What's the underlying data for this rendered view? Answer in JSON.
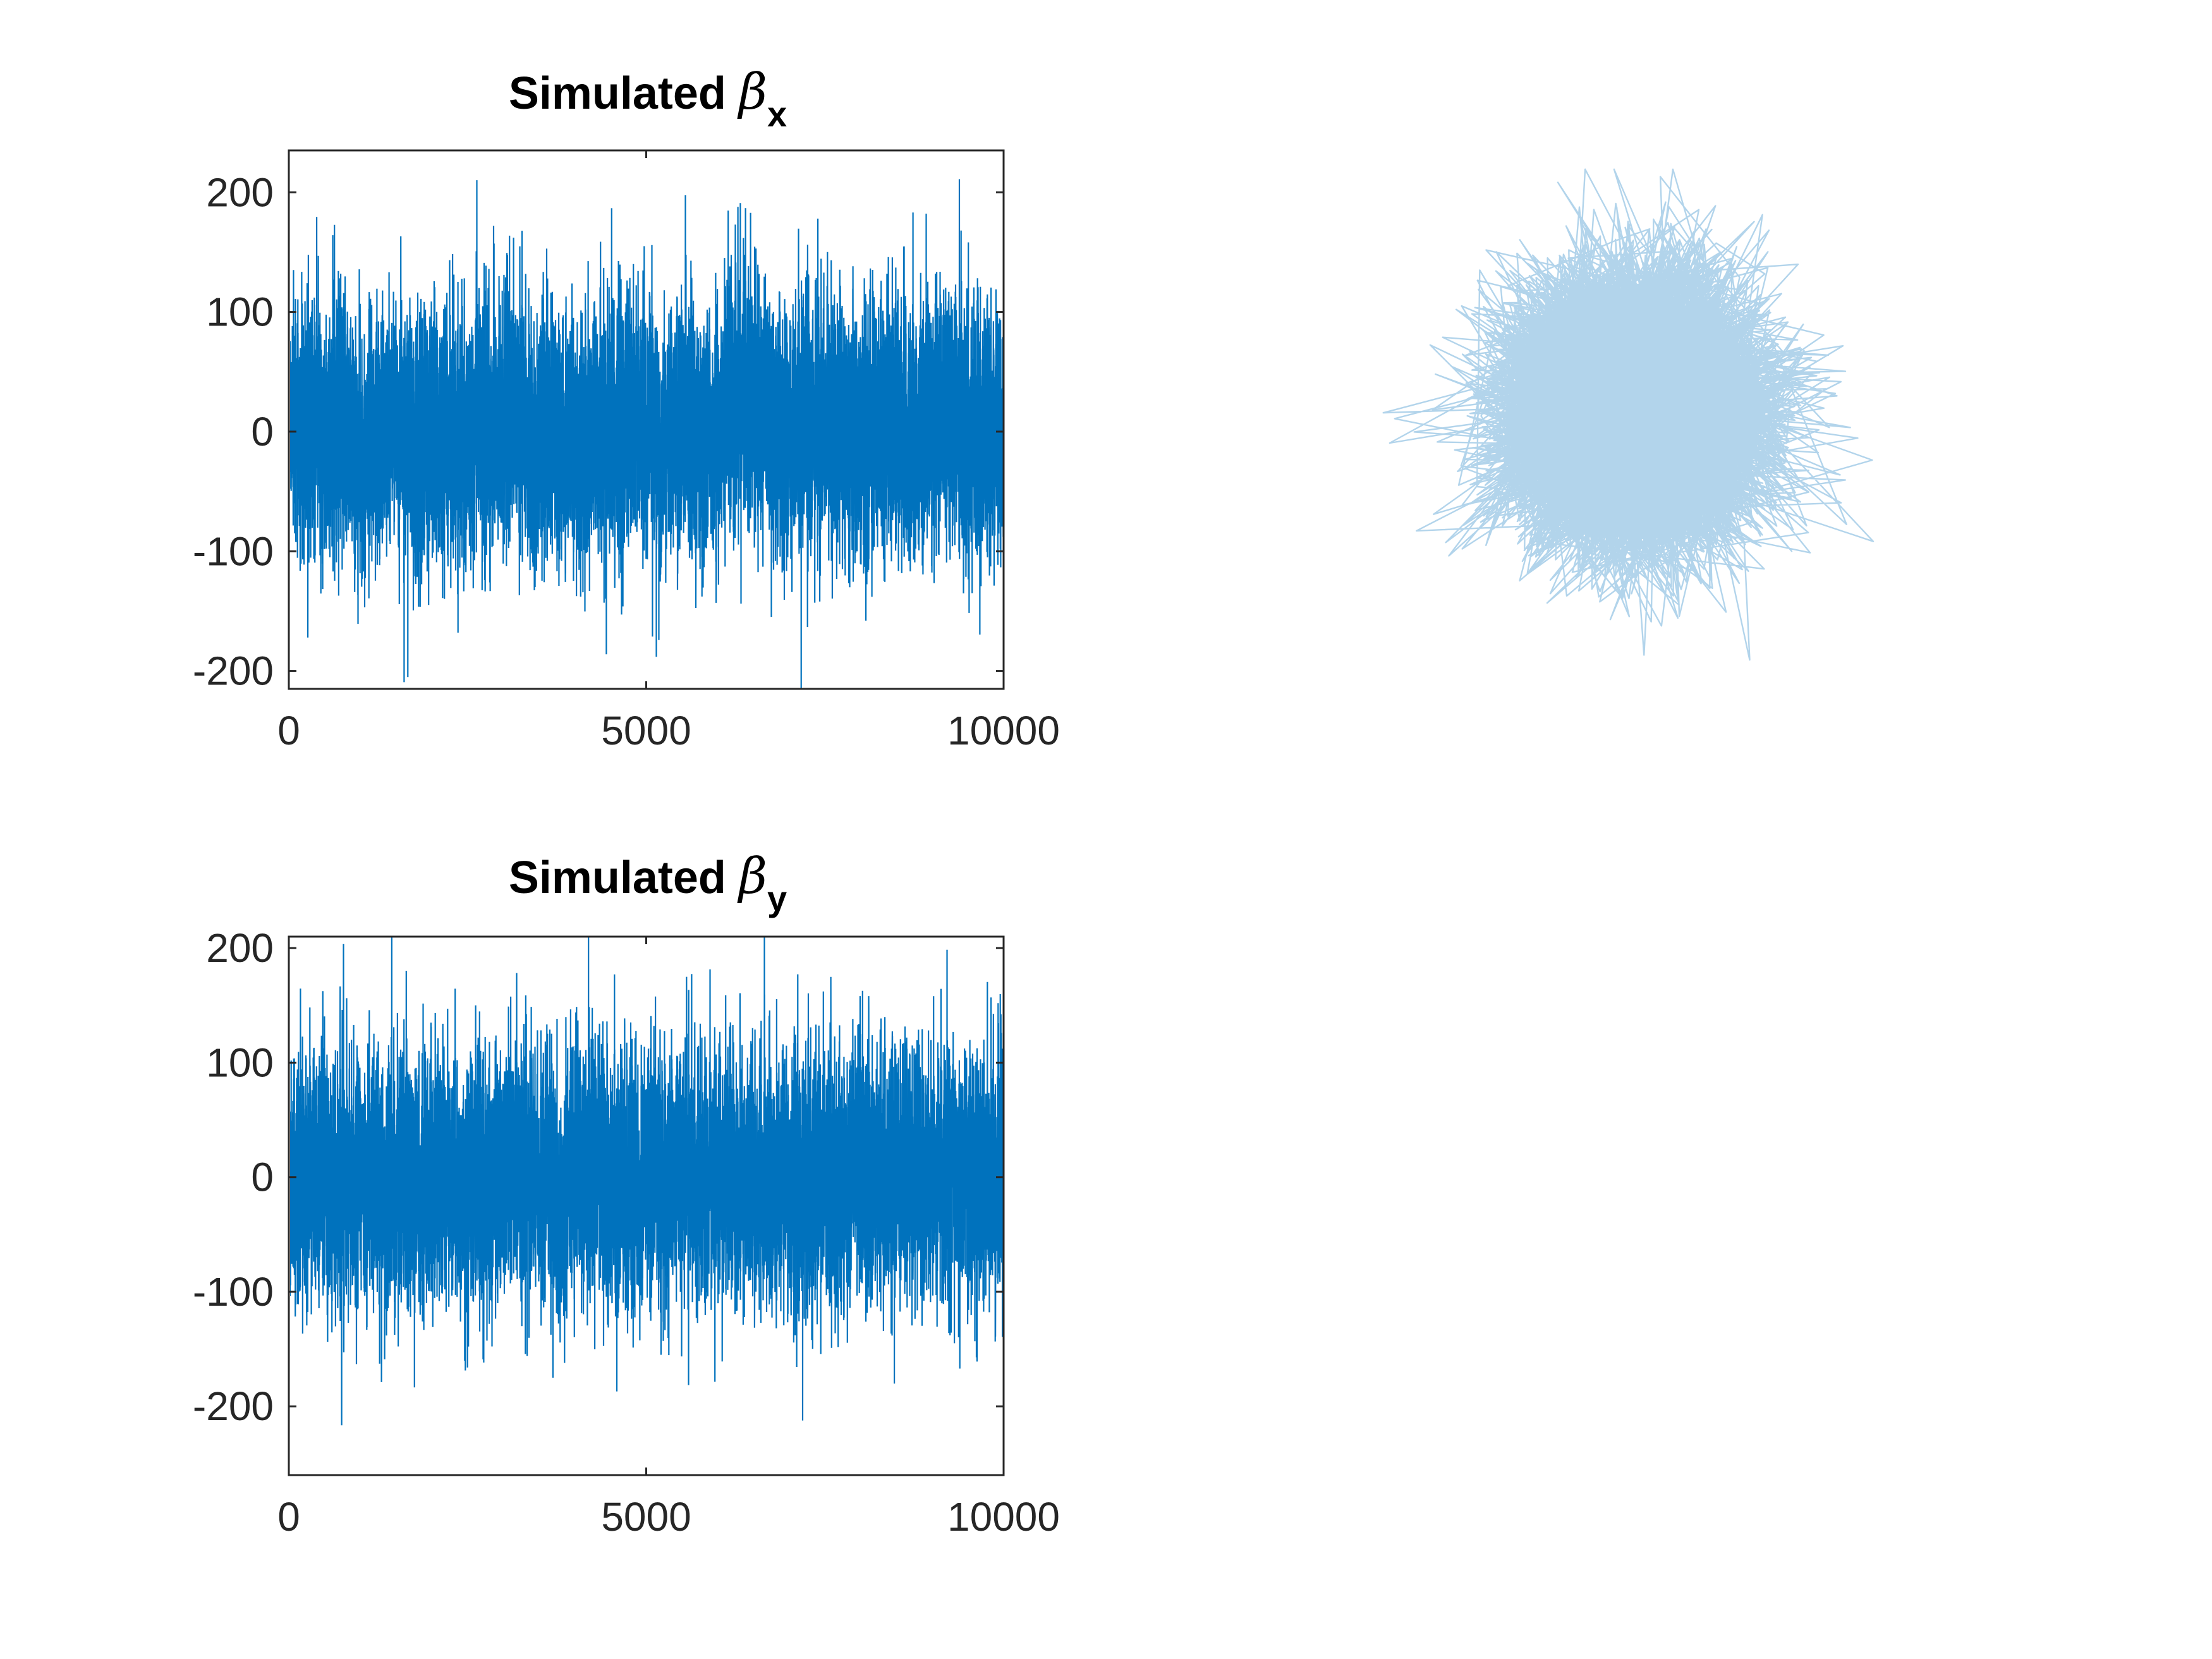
{
  "chart_data": [
    {
      "type": "line",
      "title": "Simulated ",
      "title_symbol": "β",
      "title_subscript": "x",
      "xlim": [
        0,
        10000
      ],
      "ylim": [
        -215,
        235
      ],
      "xticks": [
        0,
        5000,
        10000
      ],
      "xtick_labels": [
        "0",
        "5000",
        "10000"
      ],
      "yticks": [
        -200,
        -100,
        0,
        100,
        200
      ],
      "ytick_labels": [
        "-200",
        "-100",
        "0",
        "100",
        "200"
      ],
      "n_points": 10000,
      "series_color": "#0072BD",
      "grid": false,
      "box": true,
      "summary": {
        "mean": 0,
        "std": 62,
        "min": -215,
        "max": 235
      }
    },
    {
      "type": "line",
      "title": "Simulated ",
      "title_symbol": "β",
      "title_subscript": "y",
      "xlim": [
        0,
        10000
      ],
      "ylim": [
        -260,
        210
      ],
      "xticks": [
        0,
        5000,
        10000
      ],
      "xtick_labels": [
        "0",
        "5000",
        "10000"
      ],
      "yticks": [
        -200,
        -100,
        0,
        100,
        200
      ],
      "ytick_labels": [
        "-200",
        "-100",
        "0",
        "100",
        "200"
      ],
      "n_points": 10000,
      "series_color": "#0072BD",
      "grid": false,
      "box": true,
      "summary": {
        "mean": 0,
        "std": 65,
        "min": -260,
        "max": 210
      }
    },
    {
      "type": "line",
      "description_axes": "off",
      "x_source": "β_x",
      "y_source": "β_y",
      "n_points": 10000,
      "series_color": "#0072BD",
      "alpha": 0.3,
      "grid": false
    }
  ]
}
